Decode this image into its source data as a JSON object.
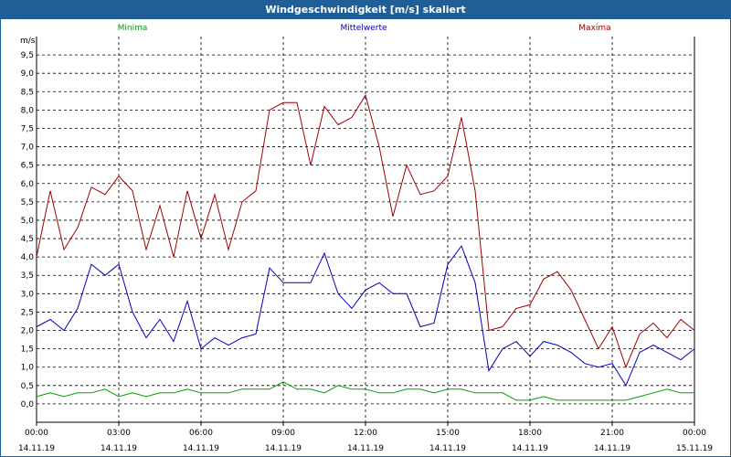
{
  "window": {
    "title": "Windgeschwindigkeit [m/s] skaliert"
  },
  "chart_data": {
    "type": "line",
    "title": "Windgeschwindigkeit [m/s] skaliert",
    "ylabel": "m/s",
    "xlabel": "",
    "ylim": [
      -0.5,
      10.0
    ],
    "yticks": [
      "0,0",
      "0,5",
      "1,0",
      "1,5",
      "2,0",
      "2,5",
      "3,0",
      "3,5",
      "4,0",
      "4,5",
      "5,0",
      "5,5",
      "6,0",
      "6,5",
      "7,0",
      "7,5",
      "8,0",
      "8,5",
      "9,0",
      "9,5"
    ],
    "yticks_values": [
      0.0,
      0.5,
      1.0,
      1.5,
      2.0,
      2.5,
      3.0,
      3.5,
      4.0,
      4.5,
      5.0,
      5.5,
      6.0,
      6.5,
      7.0,
      7.5,
      8.0,
      8.5,
      9.0,
      9.5
    ],
    "xticks": [
      {
        "time": "00:00",
        "date": "14.11.19"
      },
      {
        "time": "03:00",
        "date": "14.11.19"
      },
      {
        "time": "06:00",
        "date": "14.11.19"
      },
      {
        "time": "09:00",
        "date": "14.11.19"
      },
      {
        "time": "12:00",
        "date": "14.11.19"
      },
      {
        "time": "15:00",
        "date": "14.11.19"
      },
      {
        "time": "18:00",
        "date": "14.11.19"
      },
      {
        "time": "21:00",
        "date": "14.11.19"
      },
      {
        "time": "00:00",
        "date": "15.11.19"
      }
    ],
    "x_hours": [
      0,
      0.5,
      1,
      1.5,
      2,
      2.5,
      3,
      3.5,
      4,
      4.5,
      5,
      5.5,
      6,
      6.5,
      7,
      7.5,
      8,
      8.5,
      9,
      9.5,
      10,
      10.5,
      11,
      11.5,
      12,
      12.5,
      13,
      13.5,
      14,
      14.5,
      15,
      15.5,
      16,
      16.5,
      17,
      17.5,
      18,
      18.5,
      19,
      19.5,
      20,
      20.5,
      21,
      21.5,
      22,
      22.5,
      23,
      23.5,
      24
    ],
    "grid": true,
    "legend": "top",
    "series": [
      {
        "name": "Minima",
        "color": "#00a000",
        "values": [
          0.2,
          0.3,
          0.2,
          0.3,
          0.3,
          0.4,
          0.2,
          0.3,
          0.2,
          0.3,
          0.3,
          0.4,
          0.3,
          0.3,
          0.3,
          0.4,
          0.4,
          0.4,
          0.6,
          0.4,
          0.4,
          0.3,
          0.5,
          0.4,
          0.4,
          0.3,
          0.3,
          0.4,
          0.4,
          0.3,
          0.4,
          0.4,
          0.3,
          0.3,
          0.3,
          0.1,
          0.1,
          0.2,
          0.1,
          0.1,
          0.1,
          0.1,
          0.1,
          0.1,
          0.2,
          0.3,
          0.4,
          0.3,
          0.3
        ]
      },
      {
        "name": "Mittelwerte",
        "color": "#0000c0",
        "values": [
          2.1,
          2.3,
          2.0,
          2.6,
          3.8,
          3.5,
          3.8,
          2.5,
          1.8,
          2.3,
          1.7,
          2.8,
          1.5,
          1.8,
          1.6,
          1.8,
          1.9,
          3.7,
          3.3,
          3.3,
          3.3,
          4.1,
          3.0,
          2.6,
          3.1,
          3.3,
          3.0,
          3.0,
          2.1,
          2.2,
          3.8,
          4.3,
          3.3,
          0.9,
          1.5,
          1.7,
          1.3,
          1.7,
          1.6,
          1.4,
          1.1,
          1.0,
          1.1,
          0.5,
          1.4,
          1.6,
          1.4,
          1.2,
          1.5
        ]
      },
      {
        "name": "Maxima",
        "color": "#a00000",
        "values": [
          4.0,
          5.8,
          4.2,
          4.8,
          5.9,
          5.7,
          6.2,
          5.8,
          4.2,
          5.4,
          4.0,
          5.8,
          4.5,
          5.7,
          4.2,
          5.5,
          5.8,
          8.0,
          8.2,
          8.2,
          6.5,
          8.1,
          7.6,
          7.8,
          8.4,
          7.0,
          5.1,
          6.5,
          5.7,
          5.8,
          6.2,
          7.8,
          5.8,
          2.0,
          2.1,
          2.6,
          2.7,
          3.4,
          3.6,
          3.1,
          2.3,
          1.5,
          2.1,
          1.0,
          1.9,
          2.2,
          1.8,
          2.3,
          2.0
        ]
      }
    ]
  }
}
